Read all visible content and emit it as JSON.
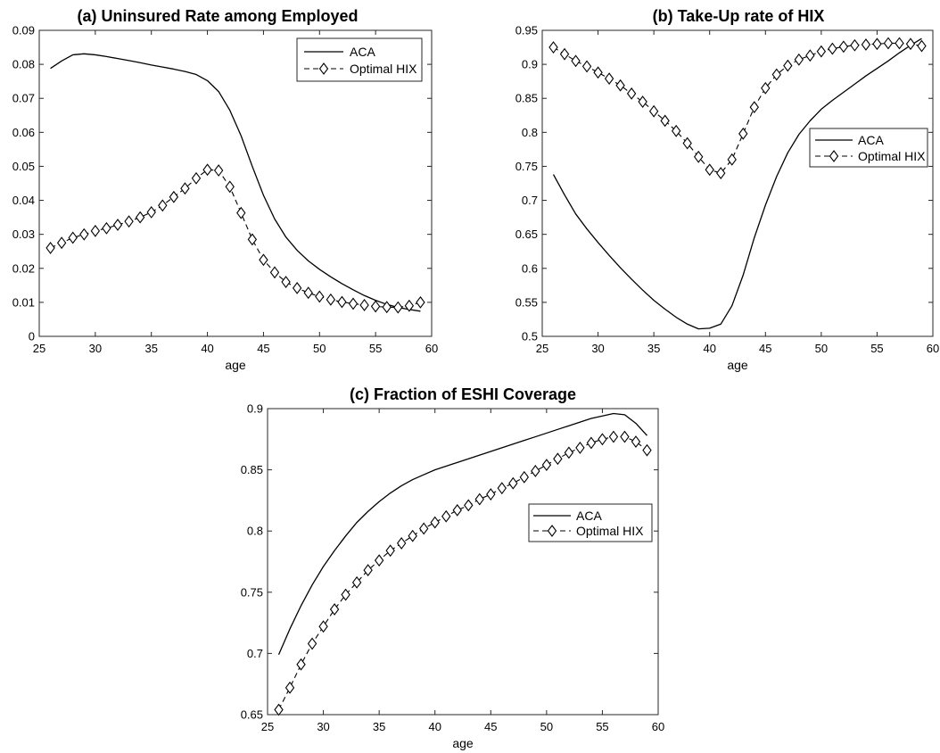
{
  "chart_data": [
    {
      "type": "line",
      "title": "(a) Uninsured Rate among Employed",
      "xlabel": "age",
      "ylabel": "",
      "xlim": [
        25,
        60
      ],
      "ylim": [
        0,
        0.09
      ],
      "xticks": [
        25,
        30,
        35,
        40,
        45,
        50,
        55,
        60
      ],
      "yticks": [
        0,
        0.01,
        0.02,
        0.03,
        0.04,
        0.05,
        0.06,
        0.07,
        0.08,
        0.09
      ],
      "xtick_labels": [
        "25",
        "30",
        "35",
        "40",
        "45",
        "50",
        "55",
        "60"
      ],
      "ytick_labels": [
        "0",
        "0.01",
        "0.02",
        "0.03",
        "0.04",
        "0.05",
        "0.06",
        "0.07",
        "0.08",
        "0.09"
      ],
      "legend_position": "top-right",
      "x": [
        26,
        27,
        28,
        29,
        30,
        31,
        32,
        33,
        34,
        35,
        36,
        37,
        38,
        39,
        40,
        41,
        42,
        43,
        44,
        45,
        46,
        47,
        48,
        49,
        50,
        51,
        52,
        53,
        54,
        55,
        56,
        57,
        58,
        59
      ],
      "series": [
        {
          "name": "ACA",
          "style": "solid",
          "values": [
            0.0788,
            0.081,
            0.0828,
            0.0831,
            0.0828,
            0.0823,
            0.0817,
            0.0811,
            0.0805,
            0.0798,
            0.0792,
            0.0786,
            0.0779,
            0.077,
            0.0752,
            0.072,
            0.0665,
            0.059,
            0.05,
            0.0415,
            0.0345,
            0.0292,
            0.0253,
            0.0222,
            0.0197,
            0.0175,
            0.0155,
            0.0137,
            0.012,
            0.0106,
            0.0094,
            0.0085,
            0.0079,
            0.0074
          ]
        },
        {
          "name": "Optimal HIX",
          "style": "dashed-diamond",
          "values": [
            0.026,
            0.0275,
            0.029,
            0.03,
            0.031,
            0.0318,
            0.0328,
            0.0338,
            0.035,
            0.0365,
            0.0385,
            0.041,
            0.0435,
            0.0465,
            0.049,
            0.0488,
            0.044,
            0.0363,
            0.0285,
            0.0225,
            0.0188,
            0.016,
            0.0142,
            0.0128,
            0.0117,
            0.0108,
            0.0101,
            0.0096,
            0.0092,
            0.0088,
            0.0086,
            0.0085,
            0.009,
            0.01
          ]
        }
      ]
    },
    {
      "type": "line",
      "title": "(b) Take-Up rate of HIX",
      "xlabel": "age",
      "ylabel": "",
      "xlim": [
        25,
        60
      ],
      "ylim": [
        0.5,
        0.95
      ],
      "xticks": [
        25,
        30,
        35,
        40,
        45,
        50,
        55,
        60
      ],
      "yticks": [
        0.5,
        0.55,
        0.6,
        0.65,
        0.7,
        0.75,
        0.8,
        0.85,
        0.9,
        0.95
      ],
      "xtick_labels": [
        "25",
        "30",
        "35",
        "40",
        "45",
        "50",
        "55",
        "60"
      ],
      "ytick_labels": [
        "0.5",
        "0.55",
        "0.6",
        "0.65",
        "0.7",
        "0.75",
        "0.8",
        "0.85",
        "0.9",
        "0.95"
      ],
      "legend_position": "right",
      "x": [
        26,
        27,
        28,
        29,
        30,
        31,
        32,
        33,
        34,
        35,
        36,
        37,
        38,
        39,
        40,
        41,
        42,
        43,
        44,
        45,
        46,
        47,
        48,
        49,
        50,
        51,
        52,
        53,
        54,
        55,
        56,
        57,
        58,
        59
      ],
      "series": [
        {
          "name": "ACA",
          "style": "solid",
          "values": [
            0.738,
            0.708,
            0.68,
            0.658,
            0.638,
            0.619,
            0.601,
            0.584,
            0.568,
            0.553,
            0.54,
            0.528,
            0.518,
            0.511,
            0.512,
            0.518,
            0.545,
            0.59,
            0.645,
            0.693,
            0.735,
            0.77,
            0.797,
            0.817,
            0.834,
            0.847,
            0.859,
            0.871,
            0.883,
            0.894,
            0.905,
            0.917,
            0.928,
            0.938
          ]
        },
        {
          "name": "Optimal HIX",
          "style": "dashed-diamond",
          "values": [
            0.925,
            0.915,
            0.905,
            0.897,
            0.888,
            0.879,
            0.869,
            0.857,
            0.845,
            0.831,
            0.817,
            0.802,
            0.784,
            0.764,
            0.745,
            0.74,
            0.76,
            0.798,
            0.837,
            0.865,
            0.885,
            0.898,
            0.907,
            0.913,
            0.919,
            0.923,
            0.926,
            0.928,
            0.929,
            0.93,
            0.931,
            0.931,
            0.93,
            0.927
          ]
        }
      ]
    },
    {
      "type": "line",
      "title": "(c) Fraction of ESHI Coverage",
      "xlabel": "age",
      "ylabel": "",
      "xlim": [
        25,
        60
      ],
      "ylim": [
        0.65,
        0.9
      ],
      "xticks": [
        25,
        30,
        35,
        40,
        45,
        50,
        55,
        60
      ],
      "yticks": [
        0.65,
        0.7,
        0.75,
        0.8,
        0.85,
        0.9
      ],
      "xtick_labels": [
        "25",
        "30",
        "35",
        "40",
        "45",
        "50",
        "55",
        "60"
      ],
      "ytick_labels": [
        "0.65",
        "0.7",
        "0.75",
        "0.8",
        "0.85",
        "0.9"
      ],
      "legend_position": "left",
      "x": [
        26,
        27,
        28,
        29,
        30,
        31,
        32,
        33,
        34,
        35,
        36,
        37,
        38,
        39,
        40,
        41,
        42,
        43,
        44,
        45,
        46,
        47,
        48,
        49,
        50,
        51,
        52,
        53,
        54,
        55,
        56,
        57,
        58,
        59
      ],
      "series": [
        {
          "name": "ACA",
          "style": "solid",
          "values": [
            0.699,
            0.72,
            0.739,
            0.756,
            0.771,
            0.784,
            0.796,
            0.807,
            0.816,
            0.824,
            0.831,
            0.837,
            0.842,
            0.846,
            0.85,
            0.853,
            0.856,
            0.859,
            0.862,
            0.865,
            0.868,
            0.871,
            0.874,
            0.877,
            0.88,
            0.883,
            0.886,
            0.889,
            0.892,
            0.894,
            0.896,
            0.895,
            0.888,
            0.878
          ]
        },
        {
          "name": "Optimal HIX",
          "style": "dashed-diamond",
          "values": [
            0.654,
            0.672,
            0.691,
            0.708,
            0.722,
            0.736,
            0.748,
            0.758,
            0.768,
            0.776,
            0.784,
            0.79,
            0.796,
            0.802,
            0.807,
            0.812,
            0.817,
            0.821,
            0.826,
            0.83,
            0.835,
            0.839,
            0.844,
            0.849,
            0.854,
            0.859,
            0.864,
            0.868,
            0.872,
            0.875,
            0.877,
            0.877,
            0.873,
            0.866
          ]
        }
      ]
    }
  ]
}
